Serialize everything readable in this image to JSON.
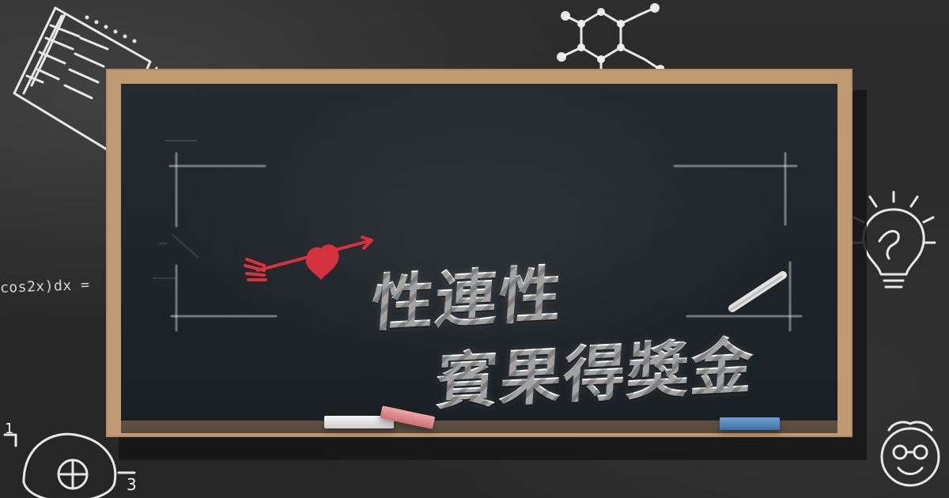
{
  "doodles": {
    "integral_fragment": "cos2x)dx ="
  },
  "title": {
    "line1": "性連性",
    "line2": "賓果得獎金"
  },
  "icons": {
    "heart_arrow": "heart-with-arrow-icon",
    "lightbulb": "lightbulb-icon",
    "molecule": "molecule-icon",
    "notebook": "notebook-icon",
    "cell": "cell-doodle-icon",
    "face": "face-doodle-icon"
  },
  "colors": {
    "frame": "#bf9a73",
    "board": "#1f2429",
    "heart": "#d9323f",
    "chalk_white": "#e9e9e9",
    "chalk_pink": "#d98486",
    "chalk_blue": "#4f80b6"
  }
}
